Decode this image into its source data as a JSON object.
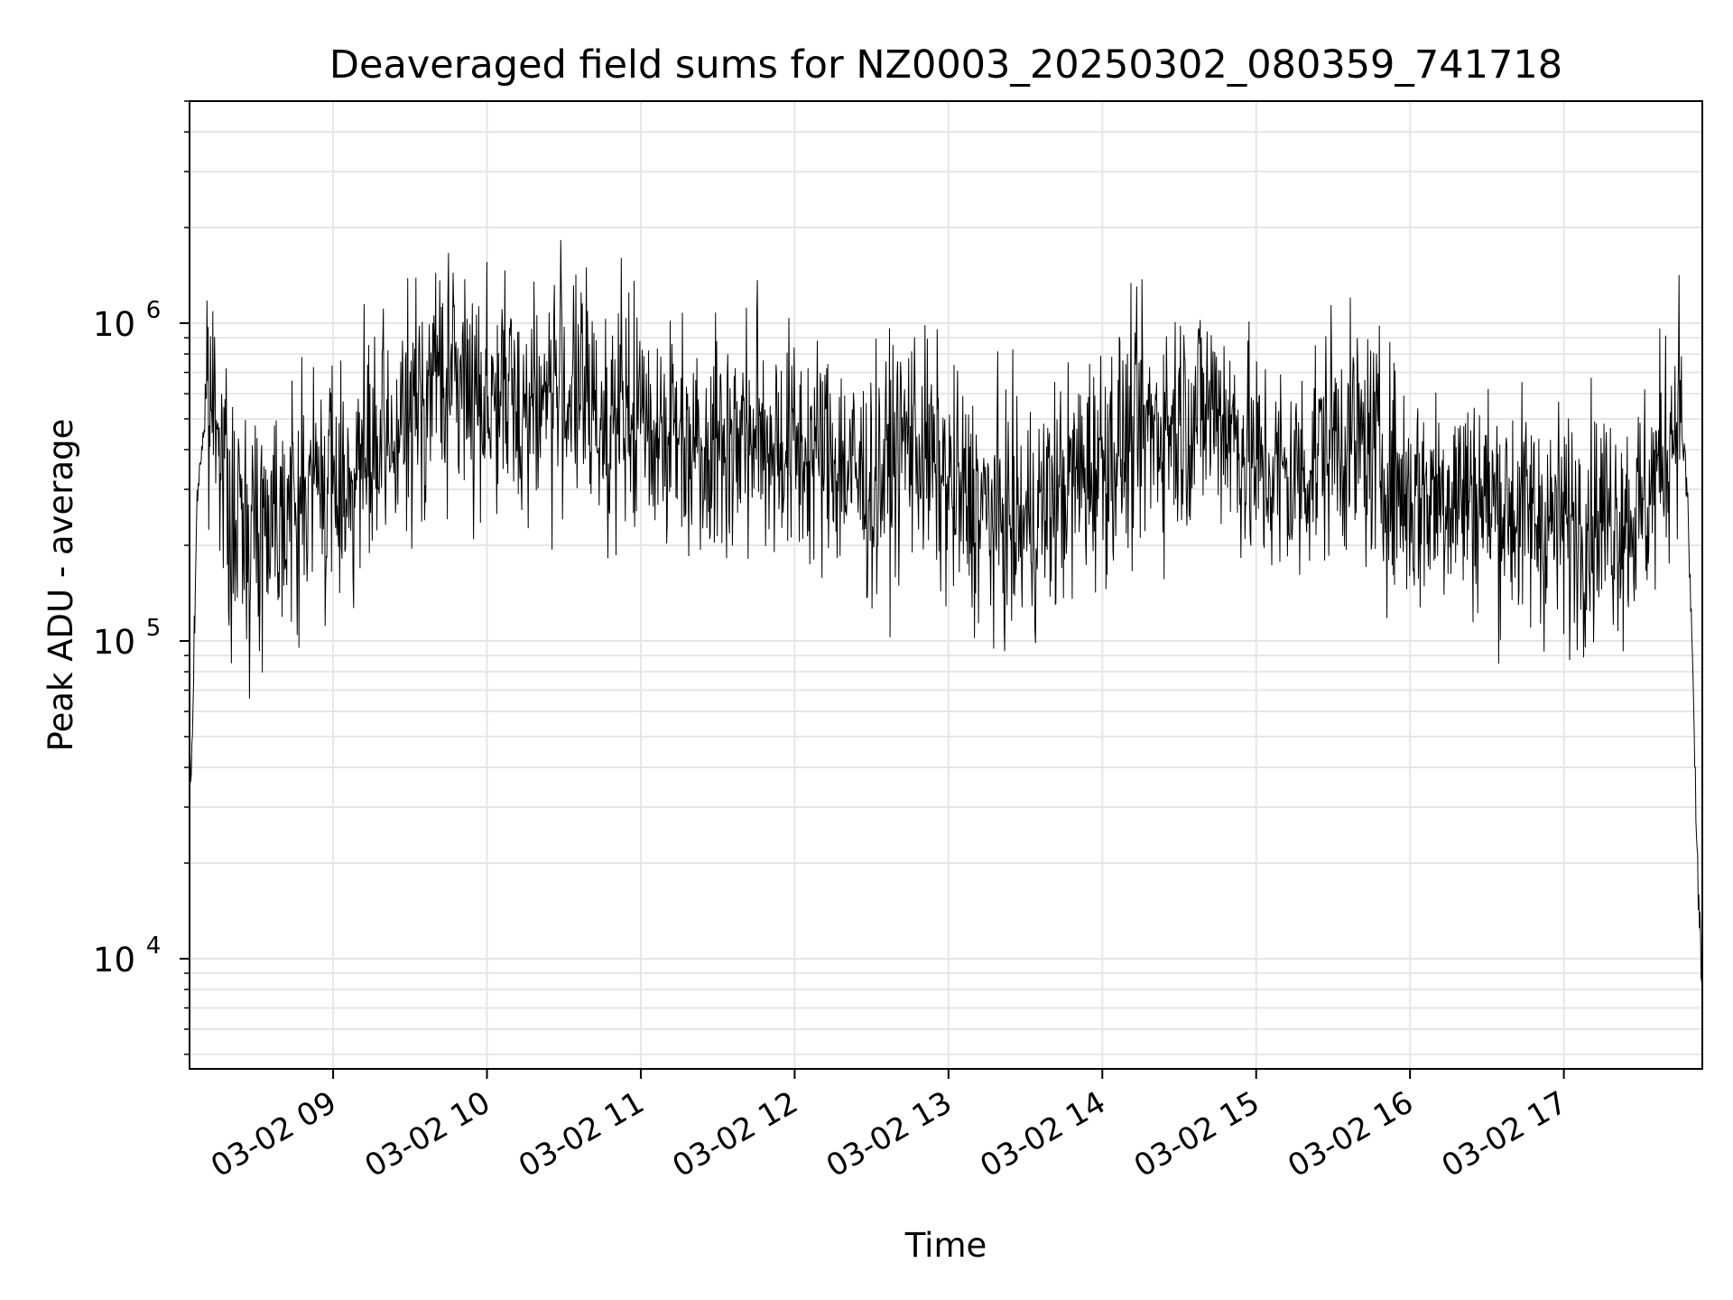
{
  "chart_data": {
    "type": "line",
    "title": "Deaveraged field sums for NZ0003_20250302_080359_741718",
    "xlabel": "Time",
    "ylabel": "Peak ADU - average",
    "yscale": "log",
    "ylim": [
      4500,
      5000000
    ],
    "xlim": [
      "2025-03-02 08:04",
      "2025-03-02 17:54"
    ],
    "grid": true,
    "line_color": "#000000",
    "x_tick_labels": [
      "03-02 09",
      "03-02 10",
      "03-02 11",
      "03-02 12",
      "03-02 13",
      "03-02 14",
      "03-02 15",
      "03-02 16",
      "03-02 17"
    ],
    "x_ticks": [
      "2025-03-02 09:00",
      "2025-03-02 10:00",
      "2025-03-02 11:00",
      "2025-03-02 12:00",
      "2025-03-02 13:00",
      "2025-03-02 14:00",
      "2025-03-02 15:00",
      "2025-03-02 16:00",
      "2025-03-02 17:00"
    ],
    "y_ticks": [
      10000,
      100000,
      1000000
    ],
    "y_tick_labels": [
      {
        "base": "10",
        "exp": "4"
      },
      {
        "base": "10",
        "exp": "5"
      },
      {
        "base": "10",
        "exp": "6"
      }
    ],
    "x": [
      "2025-03-02 08:04",
      "2025-03-02 08:05",
      "2025-03-02 08:07",
      "2025-03-02 08:10",
      "2025-03-02 08:15",
      "2025-03-02 08:20",
      "2025-03-02 08:25",
      "2025-03-02 08:30",
      "2025-03-02 08:35",
      "2025-03-02 08:40",
      "2025-03-02 08:45",
      "2025-03-02 08:50",
      "2025-03-02 08:55",
      "2025-03-02 09:00",
      "2025-03-02 09:10",
      "2025-03-02 09:20",
      "2025-03-02 09:30",
      "2025-03-02 09:40",
      "2025-03-02 09:50",
      "2025-03-02 10:00",
      "2025-03-02 10:15",
      "2025-03-02 10:30",
      "2025-03-02 10:45",
      "2025-03-02 11:00",
      "2025-03-02 11:15",
      "2025-03-02 11:30",
      "2025-03-02 11:45",
      "2025-03-02 12:00",
      "2025-03-02 12:15",
      "2025-03-02 12:30",
      "2025-03-02 12:45",
      "2025-03-02 13:00",
      "2025-03-02 13:15",
      "2025-03-02 13:30",
      "2025-03-02 13:45",
      "2025-03-02 14:00",
      "2025-03-02 14:15",
      "2025-03-02 14:30",
      "2025-03-02 14:45",
      "2025-03-02 15:00",
      "2025-03-02 15:15",
      "2025-03-02 15:30",
      "2025-03-02 15:45",
      "2025-03-02 16:00",
      "2025-03-02 16:15",
      "2025-03-02 16:30",
      "2025-03-02 16:45",
      "2025-03-02 17:00",
      "2025-03-02 17:15",
      "2025-03-02 17:30",
      "2025-03-02 17:40",
      "2025-03-02 17:45",
      "2025-03-02 17:48",
      "2025-03-02 17:50",
      "2025-03-02 17:52",
      "2025-03-02 17:54"
    ],
    "series": [
      {
        "values": [
          35000,
          45000,
          300000,
          500000,
          600000,
          200000,
          250000,
          220000,
          260000,
          280000,
          250000,
          300000,
          320000,
          300000,
          350000,
          380000,
          500000,
          700000,
          650000,
          600000,
          550000,
          650000,
          500000,
          500000,
          450000,
          420000,
          450000,
          400000,
          380000,
          300000,
          450000,
          300000,
          250000,
          230000,
          300000,
          380000,
          450000,
          500000,
          550000,
          350000,
          320000,
          450000,
          400000,
          280000,
          300000,
          280000,
          250000,
          230000,
          250000,
          250000,
          400000,
          600000,
          300000,
          100000,
          20000,
          8000
        ],
        "noise_amplitude_dex": 0.35
      }
    ]
  }
}
